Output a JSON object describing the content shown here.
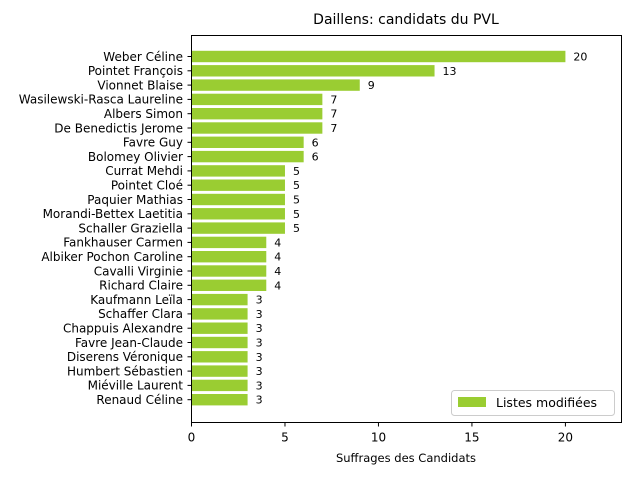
{
  "chart_data": {
    "type": "bar",
    "orientation": "horizontal",
    "title": "Daillens: candidats du PVL",
    "xlabel": "Suffrages des Candidats",
    "ylabel": "",
    "xlim": [
      0,
      23
    ],
    "xticks": [
      0,
      5,
      10,
      15,
      20
    ],
    "grid": false,
    "legend_position": "lower-right",
    "bar_color": "#9acd32",
    "categories": [
      "Weber Céline",
      "Pointet François",
      "Vionnet Blaise",
      "Wasilewski-Rasca Laureline",
      "Albers Simon",
      "De Benedictis Jerome",
      "Favre Guy",
      "Bolomey Olivier",
      "Currat Mehdi",
      "Pointet Cloé",
      "Paquier Mathias",
      "Morandi-Bettex Laetitia",
      "Schaller Graziella",
      "Fankhauser Carmen",
      "Albiker Pochon Caroline",
      "Cavalli Virginie",
      "Richard Claire",
      "Kaufmann Leïla",
      "Schaffer Clara",
      "Chappuis Alexandre",
      "Favre Jean-Claude",
      "Diserens Véronique",
      "Humbert Sébastien",
      "Miéville Laurent",
      "Renaud Céline"
    ],
    "series": [
      {
        "name": "Listes modifiées",
        "values": [
          20,
          13,
          9,
          7,
          7,
          7,
          6,
          6,
          5,
          5,
          5,
          5,
          5,
          4,
          4,
          4,
          4,
          3,
          3,
          3,
          3,
          3,
          3,
          3,
          3
        ]
      }
    ]
  }
}
